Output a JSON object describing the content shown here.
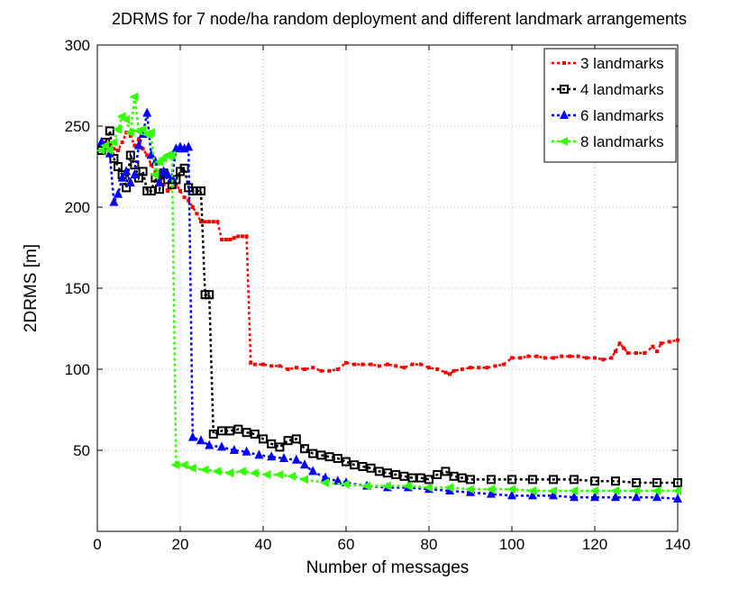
{
  "chart_data": {
    "type": "line",
    "title": "2DRMS for 7 node/ha random deployment and different landmark arrangements",
    "xlabel": "Number of messages",
    "ylabel": "2DRMS [m]",
    "xlim": [
      0,
      140
    ],
    "ylim": [
      0,
      300
    ],
    "xticks": [
      "0",
      "20",
      "40",
      "60",
      "80",
      "100",
      "120",
      "140"
    ],
    "yticks": [
      "50",
      "100",
      "150",
      "200",
      "250",
      "300"
    ],
    "grid": true,
    "legend_position": "top-right",
    "series": [
      {
        "name": "3 landmarks",
        "color": "#ff0000",
        "marker": "dot",
        "x": [
          1,
          2,
          3,
          4,
          5,
          6,
          7,
          8,
          9,
          10,
          11,
          12,
          13,
          14,
          15,
          16,
          17,
          18,
          19,
          20,
          21,
          22,
          23,
          24,
          25,
          26,
          27,
          28,
          29,
          30,
          31,
          32,
          33,
          34,
          35,
          36,
          37,
          38,
          40,
          42,
          44,
          46,
          48,
          50,
          52,
          54,
          56,
          58,
          60,
          62,
          64,
          66,
          68,
          70,
          72,
          74,
          76,
          78,
          80,
          82,
          84,
          85,
          86,
          88,
          90,
          92,
          94,
          96,
          98,
          100,
          102,
          104,
          106,
          108,
          110,
          112,
          114,
          116,
          118,
          120,
          122,
          124,
          125,
          126,
          127,
          128,
          130,
          132,
          134,
          135,
          136,
          138,
          140
        ],
        "y": [
          240,
          240,
          238,
          236,
          235,
          240,
          246,
          244,
          238,
          242,
          236,
          232,
          226,
          222,
          218,
          214,
          210,
          212,
          214,
          210,
          206,
          204,
          200,
          196,
          191,
          191,
          191,
          191,
          191,
          180,
          180,
          180,
          181,
          182,
          182,
          182,
          104,
          103,
          103,
          102,
          102,
          100,
          101,
          100,
          101,
          99,
          99,
          100,
          104,
          103,
          103,
          103,
          102,
          103,
          102,
          101,
          103,
          103,
          101,
          100,
          98,
          97,
          99,
          100,
          101,
          101,
          101,
          102,
          103,
          107,
          107,
          108,
          108,
          107,
          107,
          108,
          108,
          108,
          107,
          107,
          106,
          107,
          111,
          116,
          113,
          110,
          110,
          110,
          114,
          111,
          116,
          117,
          118
        ]
      },
      {
        "name": "4 landmarks",
        "color": "#000000",
        "marker": "square",
        "x": [
          1,
          2,
          3,
          4,
          5,
          6,
          7,
          8,
          9,
          10,
          11,
          12,
          13,
          14,
          15,
          16,
          17,
          18,
          19,
          20,
          21,
          22,
          23,
          24,
          25,
          26,
          27,
          28,
          30,
          32,
          34,
          36,
          38,
          40,
          42,
          44,
          46,
          48,
          50,
          52,
          54,
          56,
          58,
          60,
          62,
          64,
          66,
          68,
          70,
          72,
          74,
          76,
          78,
          80,
          82,
          84,
          86,
          88,
          90,
          95,
          100,
          105,
          110,
          115,
          120,
          125,
          130,
          135,
          140
        ],
        "y": [
          235,
          240,
          247,
          230,
          225,
          220,
          212,
          232,
          226,
          218,
          222,
          210,
          210,
          218,
          211,
          221,
          217,
          214,
          217,
          222,
          224,
          212,
          210,
          210,
          210,
          146,
          146,
          60,
          62,
          62,
          63,
          61,
          60,
          57,
          54,
          52,
          56,
          57,
          51,
          48,
          47,
          46,
          45,
          43,
          41,
          40,
          39,
          37,
          36,
          35,
          34,
          33,
          33,
          32,
          35,
          37,
          34,
          33,
          32,
          32,
          32,
          32,
          32,
          32,
          31,
          31,
          30,
          30,
          30
        ]
      },
      {
        "name": "6 landmarks",
        "color": "#0000ff",
        "marker": "triangle-up",
        "x": [
          1,
          2,
          3,
          4,
          5,
          6,
          7,
          8,
          9,
          10,
          11,
          12,
          13,
          14,
          15,
          16,
          17,
          18,
          19,
          20,
          21,
          22,
          23,
          25,
          27,
          30,
          33,
          36,
          39,
          42,
          45,
          48,
          50,
          52,
          55,
          58,
          60,
          65,
          70,
          75,
          80,
          85,
          90,
          95,
          100,
          105,
          110,
          115,
          120,
          125,
          130,
          135,
          140
        ],
        "y": [
          240,
          238,
          233,
          203,
          208,
          218,
          222,
          215,
          220,
          238,
          245,
          258,
          232,
          228,
          215,
          222,
          220,
          218,
          236,
          237,
          236,
          237,
          58,
          56,
          53,
          52,
          50,
          49,
          47,
          46,
          45,
          44,
          41,
          37,
          33,
          31,
          30,
          28,
          27,
          27,
          26,
          25,
          24,
          23,
          22,
          22,
          22,
          21,
          21,
          21,
          21,
          21,
          20
        ]
      },
      {
        "name": "8 landmarks",
        "color": "#33ff00",
        "marker": "triangle-left",
        "x": [
          1,
          2,
          3,
          4,
          5,
          6,
          7,
          8,
          9,
          10,
          11,
          12,
          13,
          14,
          15,
          16,
          17,
          18,
          19,
          21,
          23,
          26,
          29,
          32,
          35,
          38,
          41,
          44,
          47,
          50,
          55,
          60,
          65,
          70,
          75,
          80,
          85,
          90,
          95,
          100,
          105,
          110,
          115,
          120,
          125,
          130,
          135,
          140
        ],
        "y": [
          235,
          238,
          235,
          240,
          248,
          256,
          254,
          246,
          268,
          247,
          248,
          245,
          246,
          220,
          228,
          230,
          232,
          232,
          41,
          41,
          39,
          38,
          37,
          36,
          37,
          36,
          35,
          35,
          34,
          32,
          30,
          29,
          28,
          28,
          28,
          27,
          27,
          26,
          26,
          26,
          25,
          25,
          25,
          25,
          25,
          25,
          25,
          25
        ]
      }
    ]
  }
}
